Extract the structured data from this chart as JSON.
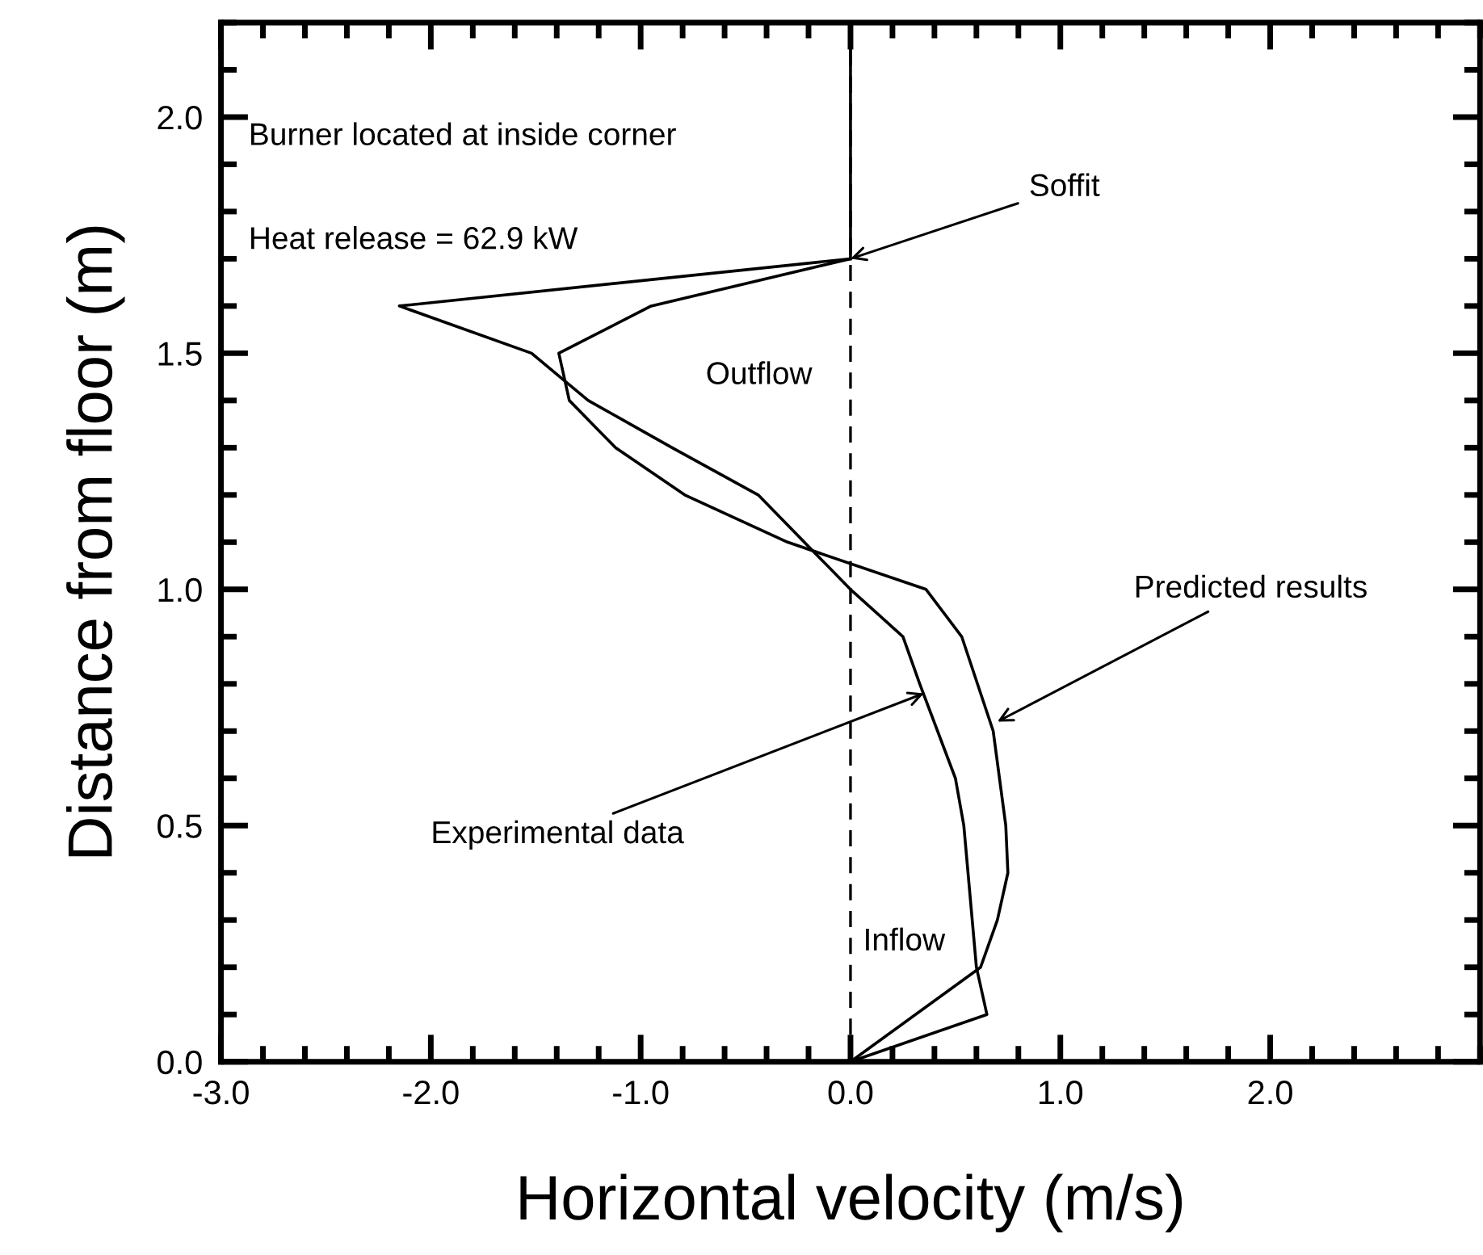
{
  "chart_data": {
    "type": "line",
    "xlabel": "Horizontal velocity (m/s)",
    "ylabel": "Distance from floor (m)",
    "xlim": [
      -3,
      3
    ],
    "ylim": [
      0,
      2.2
    ],
    "xticks": [
      {
        "value": -3,
        "label": "-3.0"
      },
      {
        "value": -2,
        "label": "-2.0"
      },
      {
        "value": -1,
        "label": "-1.0"
      },
      {
        "value": 0,
        "label": "0.0"
      },
      {
        "value": 1,
        "label": "1.0"
      },
      {
        "value": 2,
        "label": "2.0"
      }
    ],
    "yticks": [
      {
        "value": 0,
        "label": "0.0"
      },
      {
        "value": 0.5,
        "label": "0.5"
      },
      {
        "value": 1,
        "label": "1.0"
      },
      {
        "value": 1.5,
        "label": "1.5"
      },
      {
        "value": 2,
        "label": "2.0"
      }
    ],
    "grid": false,
    "legend": false,
    "marker": "none",
    "line_style": "solid",
    "series": [
      {
        "color": "#000000",
        "x": [
          0,
          -2.15,
          -1.52,
          -1.25,
          -0.85,
          -0.44,
          0.0,
          0.25,
          0.33,
          0.5,
          0.54,
          0.6,
          0.65,
          0
        ],
        "values": [
          1.7,
          1.6,
          1.5,
          1.4,
          1.3,
          1.2,
          1.0,
          0.9,
          0.8,
          0.6,
          0.5,
          0.2,
          0.1,
          0
        ]
      },
      {
        "color": "#000000",
        "x": [
          0,
          -0.95,
          -1.39,
          -1.34,
          -1.12,
          -0.79,
          -0.3,
          0.36,
          0.53,
          0.68,
          0.74,
          0.75,
          0.7,
          0.62,
          0
        ],
        "values": [
          1.7,
          1.6,
          1.5,
          1.4,
          1.3,
          1.2,
          1.1,
          1.0,
          0.9,
          0.7,
          0.5,
          0.4,
          0.3,
          0.2,
          0
        ]
      },
      {
        "color": "#000000",
        "x": [
          0,
          0
        ],
        "values": [
          1.7,
          2.2
        ]
      }
    ],
    "ref_lines": [
      {
        "axis": "x",
        "value": 0,
        "color": "#000000",
        "line_style": "dashed"
      }
    ],
    "annotations": [
      "Burner located at inside corner",
      "Heat release = 62.9 kW",
      "Outflow",
      "Inflow",
      {
        "text": "Soffit",
        "x": 0,
        "y": 1.7
      },
      {
        "text": "Predicted results",
        "x": 0.7,
        "y": 0.72
      },
      {
        "text": "Experimental data",
        "x": 0.35,
        "y": 0.78
      }
    ]
  }
}
